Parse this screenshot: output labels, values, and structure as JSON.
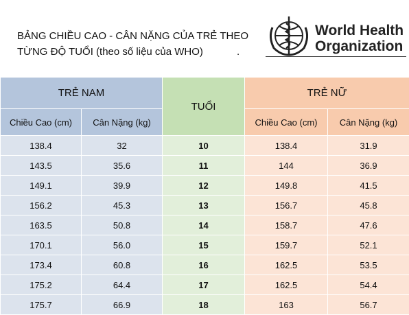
{
  "header": {
    "title_lines": [
      "BẢNG CHIỀU CAO - CÂN NẶNG CỦA TRẺ THEO",
      "TỪNG ĐỘ TUỔI (theo số liệu của WHO)"
    ],
    "trailing_mark": ".",
    "logo_lines": [
      "World Health",
      "Organization"
    ]
  },
  "table": {
    "group_headers": [
      "TRẺ NAM",
      "TUỔI",
      "TRẺ NỮ"
    ],
    "sub_headers": [
      "Chiều Cao (cm)",
      "Cân Nặng (kg)",
      "Chiều Cao (cm)",
      "Cân Nặng (kg)"
    ],
    "rows": [
      [
        "138.4",
        "32",
        "10",
        "138.4",
        "31.9"
      ],
      [
        "143.5",
        "35.6",
        "11",
        "144",
        "36.9"
      ],
      [
        "149.1",
        "39.9",
        "12",
        "149.8",
        "41.5"
      ],
      [
        "156.2",
        "45.3",
        "13",
        "156.7",
        "45.8"
      ],
      [
        "163.5",
        "50.8",
        "14",
        "158.7",
        "47.6"
      ],
      [
        "170.1",
        "56.0",
        "15",
        "159.7",
        "52.1"
      ],
      [
        "173.4",
        "60.8",
        "16",
        "162.5",
        "53.5"
      ],
      [
        "175.2",
        "64.4",
        "17",
        "162.5",
        "54.4"
      ],
      [
        "175.7",
        "66.9",
        "18",
        "163",
        "56.7"
      ]
    ]
  }
}
